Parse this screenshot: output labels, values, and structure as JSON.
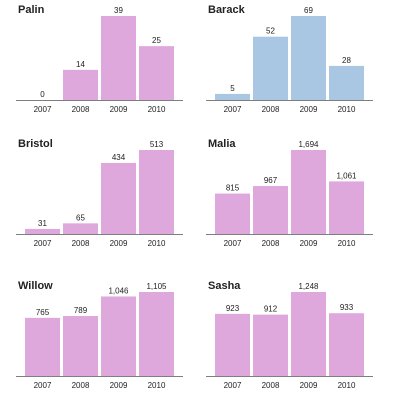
{
  "chart_data": [
    {
      "type": "bar",
      "title": "Palin",
      "categories": [
        "2007",
        "2008",
        "2009",
        "2010"
      ],
      "values": [
        0,
        14,
        39,
        25
      ],
      "value_labels": [
        "0",
        "14",
        "39",
        "25"
      ],
      "color": "#dea8dc"
    },
    {
      "type": "bar",
      "title": "Barack",
      "categories": [
        "2007",
        "2008",
        "2009",
        "2010"
      ],
      "values": [
        5,
        52,
        69,
        28
      ],
      "value_labels": [
        "5",
        "52",
        "69",
        "28"
      ],
      "color": "#a9c6e2"
    },
    {
      "type": "bar",
      "title": "Bristol",
      "categories": [
        "2007",
        "2008",
        "2009",
        "2010"
      ],
      "values": [
        31,
        65,
        434,
        513
      ],
      "value_labels": [
        "31",
        "65",
        "434",
        "513"
      ],
      "color": "#dea8dc"
    },
    {
      "type": "bar",
      "title": "Malia",
      "categories": [
        "2007",
        "2008",
        "2009",
        "2010"
      ],
      "values": [
        815,
        967,
        1694,
        1061
      ],
      "value_labels": [
        "815",
        "967",
        "1,694",
        "1,061"
      ],
      "color": "#dea8dc"
    },
    {
      "type": "bar",
      "title": "Willow",
      "categories": [
        "2007",
        "2008",
        "2009",
        "2010"
      ],
      "values": [
        765,
        789,
        1046,
        1105
      ],
      "value_labels": [
        "765",
        "789",
        "1,046",
        "1,105"
      ],
      "color": "#dea8dc"
    },
    {
      "type": "bar",
      "title": "Sasha",
      "categories": [
        "2007",
        "2008",
        "2009",
        "2010"
      ],
      "values": [
        923,
        912,
        1248,
        933
      ],
      "value_labels": [
        "923",
        "912",
        "1,248",
        "933"
      ],
      "color": "#dea8dc"
    }
  ]
}
